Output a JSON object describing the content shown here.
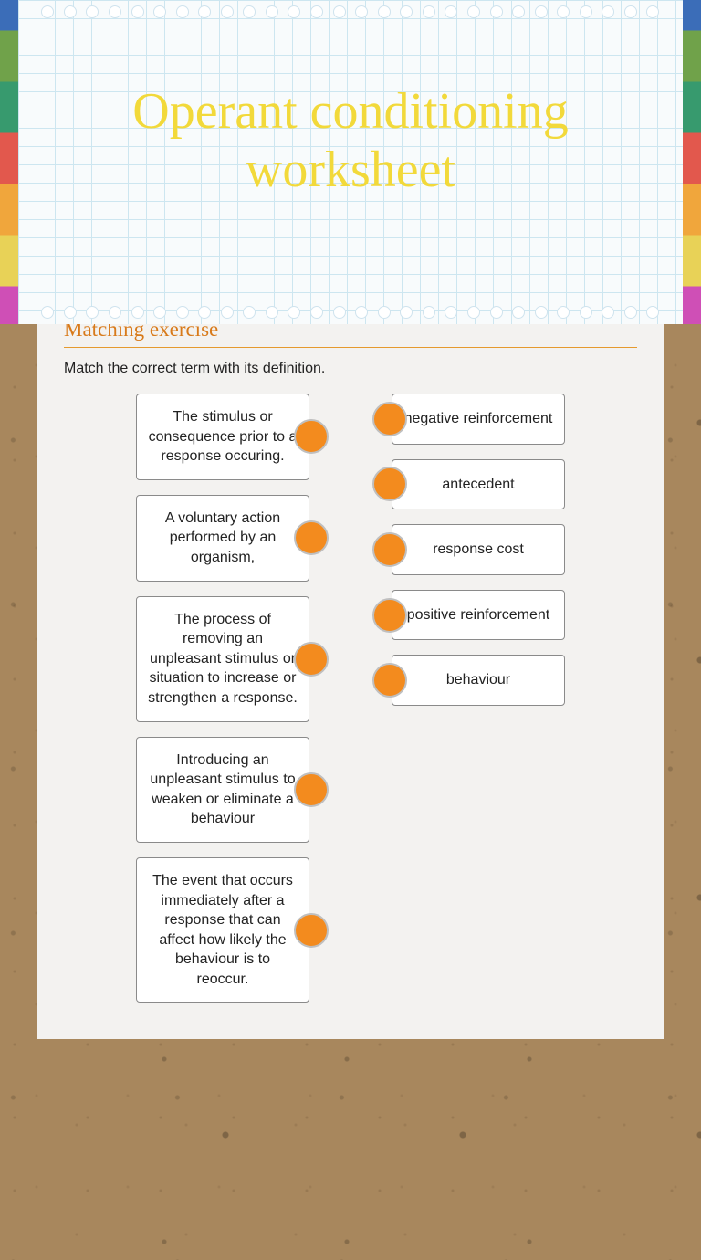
{
  "header": {
    "title": "Operant conditioning worksheet"
  },
  "section": {
    "title": "Matching exercise",
    "instructions": "Match the correct term with its definition."
  },
  "matching": {
    "definitions": [
      "The stimulus or consequence prior to a response occuring.",
      "A voluntary action performed by an organism,",
      "The process of removing an unpleasant stimulus or situation to increase or strengthen a response.",
      "Introducing an unpleasant stimulus to weaken or eliminate a behaviour",
      "The event that occurs immediately after a response that can affect how likely the behaviour is to reoccur."
    ],
    "terms": [
      "negative reinforcement",
      "antecedent",
      "response cost",
      "positive reinforcement",
      "behaviour"
    ]
  },
  "style": {
    "title_color": "#f2d93a",
    "section_title_color": "#d87a1a",
    "dot_color": "#f38b1e",
    "card_bg": "#f3f2f0",
    "item_border": "#8a8a8a"
  }
}
